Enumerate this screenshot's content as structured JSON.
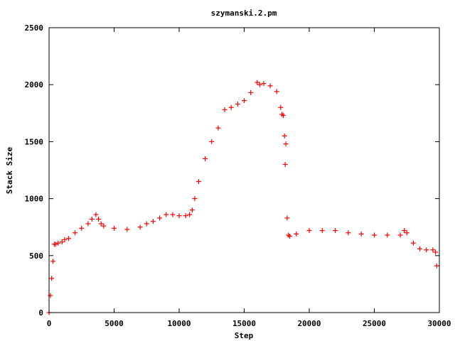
{
  "chart_data": {
    "type": "scatter",
    "title": "szymanski.2.pm",
    "xlabel": "Step",
    "ylabel": "Stack Size",
    "xlim": [
      0,
      30000
    ],
    "ylim": [
      0,
      2500
    ],
    "xticks": [
      0,
      5000,
      10000,
      15000,
      20000,
      25000,
      30000
    ],
    "yticks": [
      0,
      500,
      1000,
      1500,
      2000,
      2500
    ],
    "xtick_labels": [
      "0",
      "5000",
      "10000",
      "15000",
      "20000",
      "25000",
      "30000"
    ],
    "ytick_labels": [
      "0",
      "500",
      "1000",
      "1500",
      "2000",
      "2500"
    ],
    "grid": false,
    "legend": "none",
    "marker": "+",
    "series": [
      {
        "color": "#ff0000",
        "x": [
          0,
          100,
          200,
          300,
          400,
          500,
          700,
          1000,
          1200,
          1500,
          2000,
          2500,
          3000,
          3300,
          3600,
          3800,
          4000,
          4200,
          5000,
          6000,
          7000,
          7500,
          8000,
          8500,
          9000,
          9500,
          10000,
          10500,
          10800,
          11000,
          11200,
          11500,
          12000,
          12500,
          13000,
          13500,
          14000,
          14500,
          15000,
          15500,
          16000,
          16200,
          16500,
          17000,
          17500,
          17800,
          17900,
          18000,
          18100,
          18150,
          18200,
          18300,
          18400,
          18500,
          19000,
          20000,
          21000,
          22000,
          23000,
          24000,
          25000,
          26000,
          27000,
          27300,
          27500,
          28000,
          28500,
          29000,
          29500,
          29700,
          29800
        ],
        "y": [
          0,
          150,
          300,
          450,
          600,
          600,
          610,
          620,
          640,
          650,
          700,
          740,
          780,
          820,
          860,
          820,
          780,
          760,
          740,
          730,
          750,
          780,
          800,
          830,
          860,
          860,
          850,
          850,
          860,
          900,
          1000,
          1150,
          1350,
          1500,
          1620,
          1780,
          1800,
          1830,
          1860,
          1930,
          2020,
          2000,
          2010,
          1990,
          1940,
          1800,
          1740,
          1730,
          1550,
          1300,
          1480,
          830,
          680,
          670,
          690,
          720,
          720,
          720,
          700,
          690,
          680,
          680,
          680,
          720,
          700,
          610,
          560,
          550,
          550,
          530,
          410
        ]
      }
    ]
  }
}
